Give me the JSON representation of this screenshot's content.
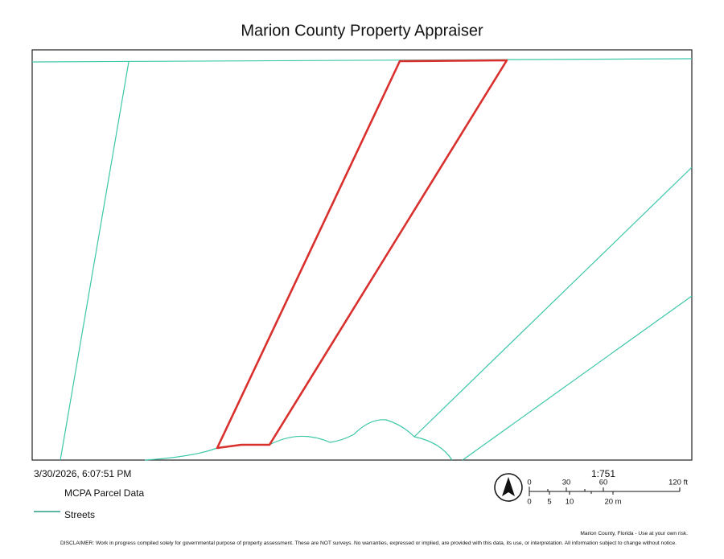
{
  "header": {
    "title": "Marion County Property Appraiser"
  },
  "timestamp": "3/30/2026, 6:07:51 PM",
  "legend": {
    "items": [
      "MCPA Parcel Data",
      "Streets"
    ]
  },
  "scale": {
    "ratio": "1:751",
    "feet_labels": [
      "0",
      "30",
      "60",
      "120 ft"
    ],
    "meter_labels": [
      "0",
      "5",
      "10",
      "20 m"
    ]
  },
  "footer": {
    "attribution": "Marion County, Florida - Use at your own risk.",
    "disclaimer": "DISCLAIMER: Work in progress compiled solely for governmental purpose of property assessment. These are NOT surveys. No warranties, expressed or implied, are provided with this data, its use, or interpretation. All information subject to change without notice."
  }
}
